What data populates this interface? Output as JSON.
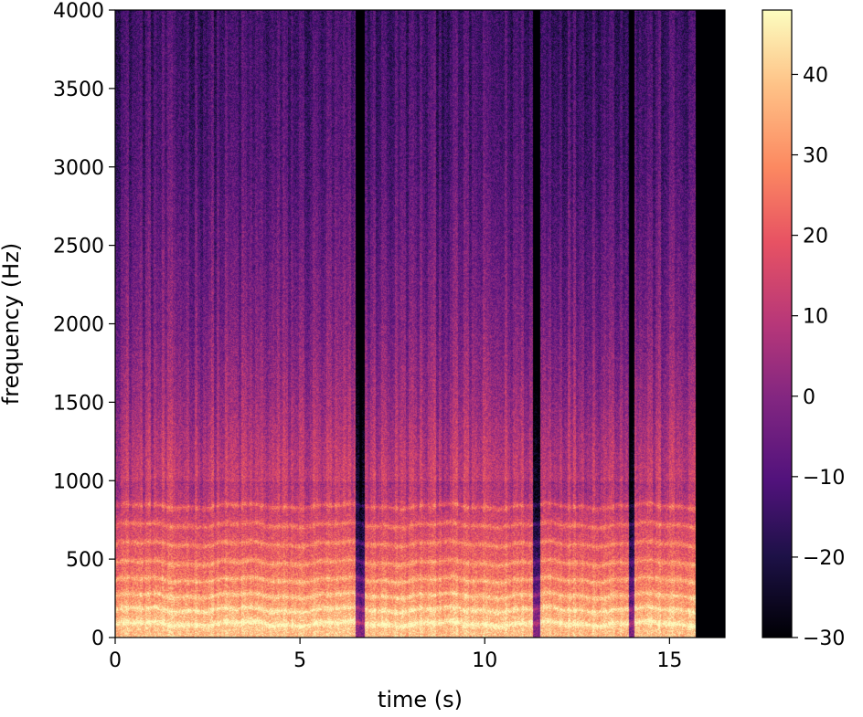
{
  "chart_data": {
    "type": "heatmap",
    "title": "",
    "xlabel": "time (s)",
    "ylabel": "frequency (Hz)",
    "xlim": [
      0,
      16.5
    ],
    "ylim": [
      0,
      4000
    ],
    "x_ticks": [
      0,
      5,
      10,
      15
    ],
    "x_tick_labels": [
      "0",
      "5",
      "10",
      "15"
    ],
    "y_ticks": [
      0,
      500,
      1000,
      1500,
      2000,
      2500,
      3000,
      3500,
      4000
    ],
    "y_tick_labels": [
      "0",
      "500",
      "1000",
      "1500",
      "2000",
      "2500",
      "3000",
      "3500",
      "4000"
    ],
    "colormap": "magma",
    "colorbar": {
      "range": [
        -30,
        48
      ],
      "ticks": [
        -30,
        -20,
        -10,
        0,
        10,
        20,
        30,
        40
      ],
      "tick_labels": [
        "−30",
        "−20",
        "−10",
        "0",
        "10",
        "20",
        "30",
        "40"
      ]
    },
    "signal_end_s": 15.7,
    "pauses_s": [
      [
        6.5,
        6.75
      ],
      [
        11.3,
        11.5
      ],
      [
        13.9,
        14.05
      ]
    ],
    "harmonic_bands_hz": [
      90,
      180,
      270,
      370,
      480,
      600,
      720,
      840
    ],
    "energy_profile": {
      "note": "approximate dB level by frequency band",
      "freq_hz": [
        100,
        300,
        500,
        1000,
        1500,
        2000,
        3000,
        4000
      ],
      "level_db": [
        42,
        32,
        25,
        12,
        4,
        -2,
        -10,
        -14
      ]
    }
  }
}
